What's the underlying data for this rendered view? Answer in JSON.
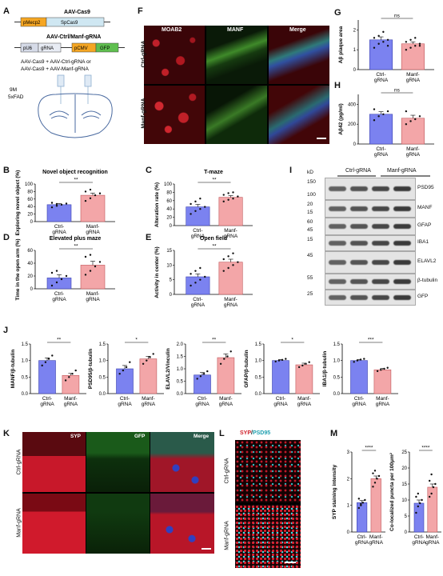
{
  "panels": {
    "A": {
      "label": "A",
      "vector1_title": "AAV-Cas9",
      "vector1_parts": [
        "pMecp2",
        "SpCas9"
      ],
      "vector2_title": "AAV-Ctrl/Manf-gRNA",
      "vector2_parts": [
        "pU6",
        "gRNA",
        "pCMV",
        "GFP"
      ],
      "injection_lines": [
        "AAV-Cas9 + AAV-Ctrl-gRNA or",
        "AAV-Cas9 + AAV-Manf-gRNA"
      ],
      "age": "9M",
      "strain": "5xFAD"
    },
    "F": {
      "label": "F",
      "channels": [
        "MOAB2",
        "MANF",
        "Merge"
      ],
      "rows": [
        "Ctrl-gRNA",
        "Manf-gRNA"
      ]
    },
    "K": {
      "label": "K",
      "channels": [
        "SYP",
        "GFP",
        "Merge"
      ],
      "rows": [
        "Ctrl-gRNA",
        "Manf-gRNA"
      ]
    },
    "L": {
      "label": "L",
      "title_a": "SYP",
      "title_sep": "/",
      "title_b": "PSD95",
      "rows": [
        "Ctrl-gRNA",
        "Manf-gRNA"
      ]
    },
    "I": {
      "label": "I",
      "kd_label": "kD",
      "groups": [
        "Ctrl-gRNA",
        "Manf-gRNA"
      ],
      "bands": [
        {
          "kd": "150",
          "kd2": "100",
          "name": "PSD95"
        },
        {
          "kd": "20",
          "kd2": "15",
          "name": "MANF"
        },
        {
          "kd": "60",
          "kd2": "45",
          "name": "GFAP"
        },
        {
          "kd": "15",
          "name": "IBA1"
        },
        {
          "kd": "45",
          "name": "ELAVL2"
        },
        {
          "kd": "55",
          "name": "β-tubulin"
        },
        {
          "kd": "25",
          "name": "GFP"
        }
      ]
    }
  },
  "chart_data": [
    {
      "id": "G",
      "type": "bar",
      "categories": [
        "Ctrl-\ngRNA",
        "Manf-\ngRNA"
      ],
      "values": [
        1.5,
        1.3
      ],
      "errors": [
        0.15,
        0.1
      ],
      "ylabel": "Aβ plaque area",
      "ylim": [
        0,
        2.5
      ],
      "yticks": [
        0,
        1,
        2
      ],
      "sig": "ns",
      "points": [
        [
          1.1,
          1.3,
          1.4,
          1.5,
          1.6,
          1.7,
          1.9,
          1.2
        ],
        [
          1.0,
          1.1,
          1.2,
          1.3,
          1.4,
          1.5,
          1.6,
          1.2
        ]
      ]
    },
    {
      "id": "H",
      "type": "bar",
      "categories": [
        "Ctrl-\ngRNA",
        "Manf-\ngRNA"
      ],
      "values": [
        300,
        260
      ],
      "errors": [
        25,
        30
      ],
      "ylabel": "Aβ42 (pg/ml)",
      "ylim": [
        0,
        500
      ],
      "yticks": [
        0,
        200,
        400
      ],
      "sig": "ns",
      "points": [
        [
          240,
          280,
          300,
          330,
          350
        ],
        [
          200,
          230,
          250,
          280,
          330
        ]
      ]
    },
    {
      "id": "B",
      "type": "bar",
      "title": "Novel object recognition",
      "categories": [
        "Ctrl-\ngRNA",
        "Manf-\ngRNA"
      ],
      "values": [
        45,
        70
      ],
      "errors": [
        3,
        6
      ],
      "ylabel": "Exploring novel object (%)",
      "ylim": [
        0,
        100
      ],
      "yticks": [
        0,
        20,
        40,
        60,
        80,
        100
      ],
      "sig": "**",
      "points": [
        [
          38,
          42,
          45,
          48,
          50,
          47
        ],
        [
          55,
          62,
          70,
          75,
          80,
          85
        ]
      ]
    },
    {
      "id": "C",
      "type": "bar",
      "title": "T-maze",
      "categories": [
        "Ctrl-\ngRNA",
        "Manf-\ngRNA"
      ],
      "values": [
        45,
        68
      ],
      "errors": [
        6,
        4
      ],
      "ylabel": "Alteration rate (%)",
      "ylim": [
        0,
        100
      ],
      "yticks": [
        0,
        20,
        40,
        60,
        80,
        100
      ],
      "sig": "**",
      "points": [
        [
          28,
          35,
          40,
          45,
          52,
          58,
          65
        ],
        [
          58,
          62,
          65,
          70,
          74,
          78,
          80
        ]
      ]
    },
    {
      "id": "D",
      "type": "bar",
      "title": "Elevated plus maze",
      "categories": [
        "Ctrl-\ngRNA",
        "Manf-\ngRNA"
      ],
      "values": [
        17,
        37
      ],
      "errors": [
        5,
        6
      ],
      "ylabel": "Time in the open arm (%)",
      "ylim": [
        0,
        60
      ],
      "yticks": [
        0,
        20,
        40,
        60
      ],
      "sig": "**",
      "points": [
        [
          5,
          10,
          15,
          20,
          25,
          28
        ],
        [
          22,
          28,
          35,
          42,
          50,
          53
        ]
      ]
    },
    {
      "id": "E",
      "type": "bar",
      "title": "Open field",
      "categories": [
        "Ctrl-\ngRNA",
        "Manf-\ngRNA"
      ],
      "values": [
        6,
        11
      ],
      "errors": [
        1,
        1
      ],
      "ylabel": "Activity in center (%)",
      "ylim": [
        0,
        15
      ],
      "yticks": [
        0,
        5,
        10,
        15
      ],
      "sig": "**",
      "points": [
        [
          3,
          4,
          5,
          6,
          7,
          8,
          9
        ],
        [
          8,
          9,
          10,
          11,
          12,
          13,
          14
        ]
      ]
    },
    {
      "id": "J1",
      "type": "bar",
      "categories": [
        "Ctrl-\ngRNA",
        "Manf-\ngRNA"
      ],
      "values": [
        1.0,
        0.55
      ],
      "errors": [
        0.08,
        0.06
      ],
      "ylabel": "MANF/β-tubulin",
      "ylim": [
        0,
        1.5
      ],
      "yticks": [
        0.0,
        0.5,
        1.0,
        1.5
      ],
      "sig": "**",
      "points": [
        [
          0.85,
          0.95,
          1.05,
          1.15
        ],
        [
          0.4,
          0.5,
          0.6,
          0.7
        ]
      ]
    },
    {
      "id": "J2",
      "type": "bar",
      "categories": [
        "Ctrl-\ngRNA",
        "Manf-\ngRNA"
      ],
      "values": [
        0.75,
        1.05
      ],
      "errors": [
        0.1,
        0.08
      ],
      "ylabel": "PSD95/β-tubulin",
      "ylim": [
        0,
        1.5
      ],
      "yticks": [
        0.0,
        0.5,
        1.0,
        1.5
      ],
      "sig": "*",
      "points": [
        [
          0.6,
          0.7,
          0.8,
          0.95
        ],
        [
          0.9,
          1.0,
          1.1,
          1.2
        ]
      ]
    },
    {
      "id": "J3",
      "type": "bar",
      "categories": [
        "Ctrl-\ngRNA",
        "Manf-\ngRNA"
      ],
      "values": [
        0.75,
        1.45
      ],
      "errors": [
        0.1,
        0.15
      ],
      "ylabel": "ELAVL2/Vinculin",
      "ylim": [
        0,
        2.0
      ],
      "yticks": [
        0.0,
        0.5,
        1.0,
        1.5,
        2.0
      ],
      "sig": "**",
      "points": [
        [
          0.6,
          0.7,
          0.8,
          0.9
        ],
        [
          1.2,
          1.4,
          1.5,
          1.7
        ]
      ]
    },
    {
      "id": "J4",
      "type": "bar",
      "categories": [
        "Ctrl-\ngRNA",
        "Manf-\ngRNA"
      ],
      "values": [
        1.0,
        0.87
      ],
      "errors": [
        0.03,
        0.05
      ],
      "ylabel": "GFAP/β-tubulin",
      "ylim": [
        0,
        1.5
      ],
      "yticks": [
        0.0,
        0.5,
        1.0,
        1.5
      ],
      "sig": "*",
      "points": [
        [
          0.97,
          1.0,
          1.02,
          1.05
        ],
        [
          0.8,
          0.85,
          0.9,
          0.95
        ]
      ]
    },
    {
      "id": "J5",
      "type": "bar",
      "categories": [
        "Ctrl-\ngRNA",
        "Manf-\ngRNA"
      ],
      "values": [
        1.0,
        0.72
      ],
      "errors": [
        0.03,
        0.04
      ],
      "ylabel": "IBA1/β-tubulin",
      "ylim": [
        0,
        1.5
      ],
      "yticks": [
        0.0,
        0.5,
        1.0,
        1.5
      ],
      "sig": "***",
      "points": [
        [
          0.96,
          1.0,
          1.03,
          1.05
        ],
        [
          0.68,
          0.72,
          0.75,
          0.78
        ]
      ]
    },
    {
      "id": "M1",
      "type": "bar",
      "categories": [
        "Ctrl-\ngRNA",
        "Manf-\ngRNA"
      ],
      "values": [
        1.1,
        2.0
      ],
      "errors": [
        0.08,
        0.1
      ],
      "ylabel": "SYP staining intensity",
      "ylim": [
        0,
        3
      ],
      "yticks": [
        0,
        1,
        2,
        3
      ],
      "sig": "****",
      "points": [
        [
          0.9,
          1.0,
          1.1,
          1.2,
          1.25,
          1.05
        ],
        [
          1.7,
          1.85,
          2.0,
          2.1,
          2.2,
          2.3
        ]
      ]
    },
    {
      "id": "M2",
      "type": "bar",
      "categories": [
        "Ctrl-\ngRNA",
        "Manf-\ngRNA"
      ],
      "values": [
        9,
        14
      ],
      "errors": [
        1,
        1
      ],
      "ylabel": "Co-localized puncta per 100μm²",
      "ylim": [
        0,
        25
      ],
      "yticks": [
        0,
        5,
        10,
        15,
        20,
        25
      ],
      "sig": "****",
      "points": [
        [
          6,
          8,
          9,
          10,
          11,
          12
        ],
        [
          11,
          12,
          14,
          15,
          16,
          18
        ]
      ]
    }
  ],
  "chart_labels": {
    "G": "G",
    "H": "H",
    "B": "B",
    "C": "C",
    "D": "D",
    "E": "E",
    "J": "J",
    "M": "M"
  }
}
